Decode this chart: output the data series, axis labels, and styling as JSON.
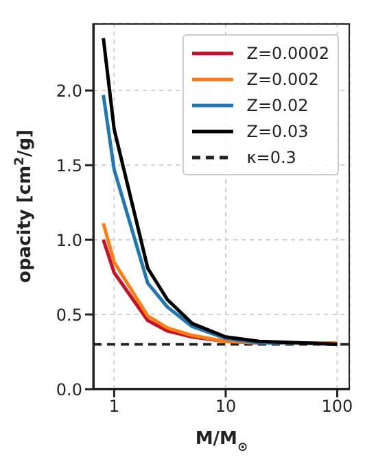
{
  "chart_data": {
    "type": "line",
    "xlabel": "M/M$_{⊙}$",
    "ylabel": "opacity [cm$^{2}$/g]",
    "x": [
      0.8,
      1,
      2,
      3,
      5,
      10,
      20,
      50,
      100
    ],
    "log": "x",
    "xlim": [
      0.65,
      130
    ],
    "xticks": [
      1,
      10,
      100
    ],
    "ylim": [
      0,
      2.45
    ],
    "yticks": [
      {
        "value": 0,
        "label": "0.0"
      },
      0.5,
      {
        "value": 1,
        "label": "1.0"
      },
      1.5,
      {
        "value": 2,
        "label": "2.0"
      }
    ],
    "series": [
      {
        "name": "Z=0.0002",
        "color": "#c8102e",
        "values": [
          1.0,
          0.78,
          0.46,
          0.39,
          0.35,
          0.32,
          0.31,
          null,
          null
        ]
      },
      {
        "name": "Z=0.002",
        "color": "#ff7f0e",
        "values": [
          1.11,
          0.85,
          0.49,
          0.41,
          0.36,
          0.32,
          0.31,
          0.31,
          0.31
        ]
      },
      {
        "name": "Z=0.02",
        "color": "#1f77b4",
        "values": [
          1.97,
          1.47,
          0.71,
          0.55,
          0.42,
          0.34,
          0.31,
          0.31,
          0.3
        ]
      },
      {
        "name": "Z=0.03",
        "color": "#000000",
        "values": [
          2.35,
          1.74,
          0.81,
          0.6,
          0.44,
          0.35,
          0.32,
          0.31,
          0.3
        ]
      }
    ],
    "ref_lines": [
      {
        "axis": "y",
        "value": 0.3,
        "label": "κ=0.3",
        "color": "#222222",
        "line_style": "dashed"
      }
    ],
    "grid": true,
    "legend": "top right",
    "marker": "none",
    "line_style": "solid"
  }
}
